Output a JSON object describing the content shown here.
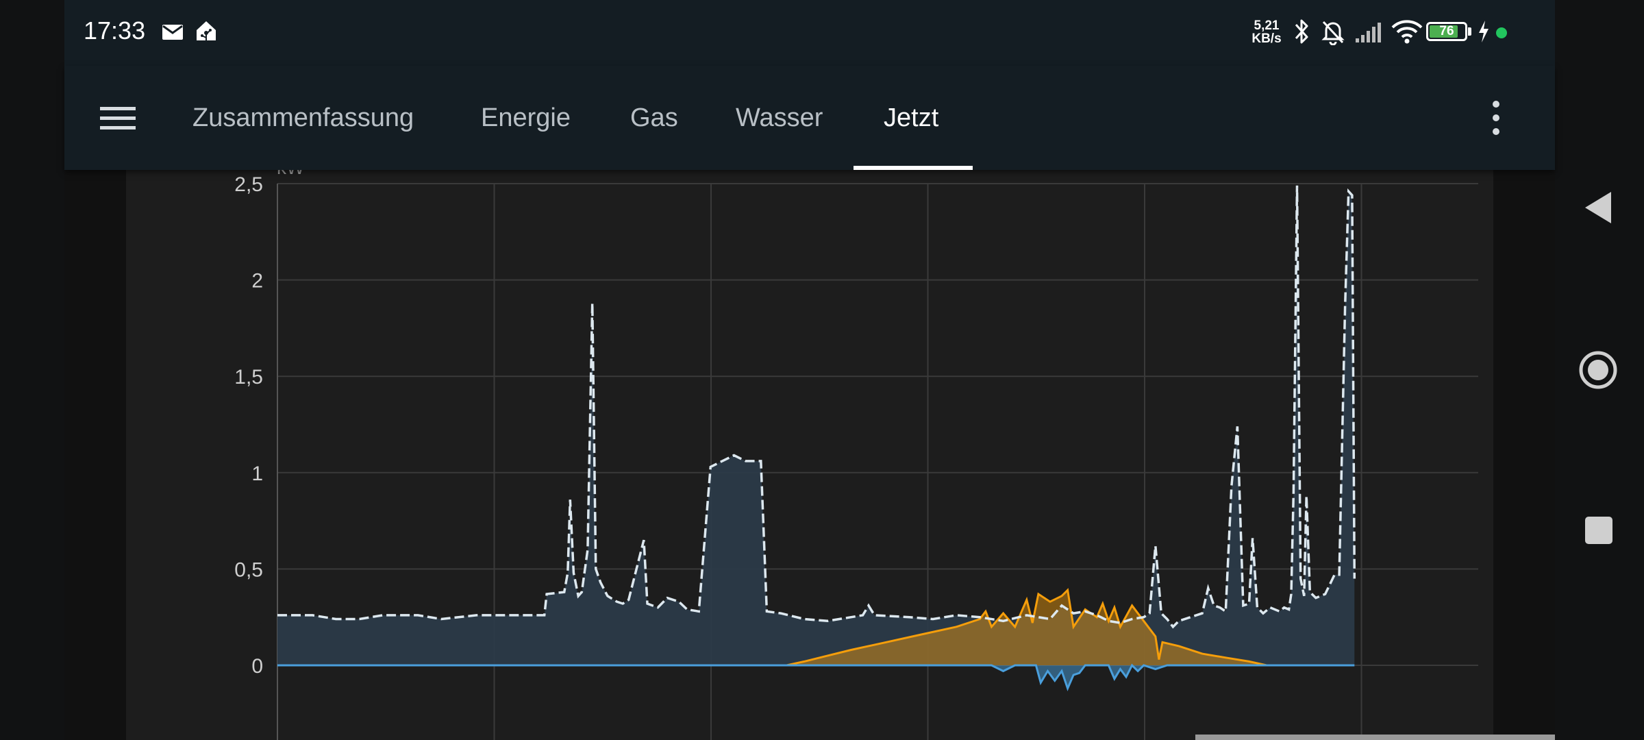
{
  "status_bar": {
    "time": "17:33",
    "net_speed_value": "5,21",
    "net_speed_unit": "KB/s",
    "battery_level": "76",
    "icons": [
      "mail-icon",
      "home-assistant-icon",
      "bluetooth-icon",
      "bell-off-icon",
      "signal-icon",
      "wifi-icon",
      "battery-icon",
      "charging-icon",
      "green-dot-icon"
    ]
  },
  "toolbar": {
    "tabs": [
      {
        "label": "Zusammenfassung",
        "active": false
      },
      {
        "label": "Energie",
        "active": false
      },
      {
        "label": "Gas",
        "active": false
      },
      {
        "label": "Wasser",
        "active": false
      },
      {
        "label": "Jetzt",
        "active": true
      }
    ]
  },
  "colors": {
    "header_bg": "#141d23",
    "consumption_line": "#dde8ef",
    "consumption_fill": "#2b3a48",
    "solar": "#f59e0b",
    "grid_return": "#4a9fdc"
  },
  "chart_data": {
    "type": "area",
    "yunit": "kW",
    "ylim": [
      -0.3,
      2.5
    ],
    "yticks": [
      "2,5",
      "2",
      "1,5",
      "1",
      "0,5",
      "0"
    ],
    "grid": true,
    "xlim": [
      0,
      1
    ],
    "series": [
      {
        "key": "consumption",
        "style": "dashed-line-with-fill",
        "points": [
          [
            0,
            0.26
          ],
          [
            0.03,
            0.26
          ],
          [
            0.04,
            0.25
          ],
          [
            0.05,
            0.24
          ],
          [
            0.07,
            0.24
          ],
          [
            0.09,
            0.26
          ],
          [
            0.12,
            0.26
          ],
          [
            0.14,
            0.24
          ],
          [
            0.17,
            0.26
          ],
          [
            0.2,
            0.26
          ],
          [
            0.228,
            0.26
          ],
          [
            0.23,
            0.37
          ],
          [
            0.245,
            0.38
          ],
          [
            0.248,
            0.48
          ],
          [
            0.25,
            0.86
          ],
          [
            0.253,
            0.48
          ],
          [
            0.257,
            0.36
          ],
          [
            0.26,
            0.38
          ],
          [
            0.265,
            0.6
          ],
          [
            0.269,
            1.88
          ],
          [
            0.272,
            0.5
          ],
          [
            0.276,
            0.43
          ],
          [
            0.282,
            0.36
          ],
          [
            0.29,
            0.33
          ],
          [
            0.295,
            0.32
          ],
          [
            0.3,
            0.34
          ],
          [
            0.313,
            0.65
          ],
          [
            0.316,
            0.32
          ],
          [
            0.325,
            0.3
          ],
          [
            0.333,
            0.35
          ],
          [
            0.343,
            0.33
          ],
          [
            0.35,
            0.29
          ],
          [
            0.36,
            0.28
          ],
          [
            0.37,
            1.03
          ],
          [
            0.38,
            1.06
          ],
          [
            0.39,
            1.09
          ],
          [
            0.4,
            1.06
          ],
          [
            0.413,
            1.06
          ],
          [
            0.418,
            0.28
          ],
          [
            0.43,
            0.27
          ],
          [
            0.45,
            0.24
          ],
          [
            0.47,
            0.23
          ],
          [
            0.5,
            0.26
          ],
          [
            0.505,
            0.31
          ],
          [
            0.51,
            0.26
          ],
          [
            0.54,
            0.25
          ],
          [
            0.56,
            0.24
          ],
          [
            0.58,
            0.26
          ],
          [
            0.6,
            0.25
          ],
          [
            0.62,
            0.23
          ],
          [
            0.64,
            0.26
          ],
          [
            0.66,
            0.24
          ],
          [
            0.67,
            0.31
          ],
          [
            0.68,
            0.27
          ],
          [
            0.69,
            0.28
          ],
          [
            0.7,
            0.26
          ],
          [
            0.71,
            0.23
          ],
          [
            0.72,
            0.22
          ],
          [
            0.73,
            0.24
          ],
          [
            0.74,
            0.25
          ],
          [
            0.745,
            0.27
          ],
          [
            0.75,
            0.62
          ],
          [
            0.755,
            0.27
          ],
          [
            0.76,
            0.24
          ],
          [
            0.765,
            0.2
          ],
          [
            0.77,
            0.23
          ],
          [
            0.78,
            0.25
          ],
          [
            0.79,
            0.27
          ],
          [
            0.795,
            0.4
          ],
          [
            0.8,
            0.31
          ],
          [
            0.805,
            0.3
          ],
          [
            0.81,
            0.28
          ],
          [
            0.815,
            0.93
          ],
          [
            0.82,
            1.24
          ],
          [
            0.825,
            0.31
          ],
          [
            0.83,
            0.32
          ],
          [
            0.833,
            0.66
          ],
          [
            0.837,
            0.3
          ],
          [
            0.842,
            0.27
          ],
          [
            0.848,
            0.3
          ],
          [
            0.856,
            0.28
          ],
          [
            0.86,
            0.3
          ],
          [
            0.864,
            0.29
          ],
          [
            0.866,
            0.37
          ],
          [
            0.868,
            0.9
          ],
          [
            0.871,
            2.49
          ],
          [
            0.874,
            0.45
          ],
          [
            0.877,
            0.36
          ],
          [
            0.879,
            0.88
          ],
          [
            0.882,
            0.38
          ],
          [
            0.887,
            0.35
          ],
          [
            0.895,
            0.37
          ],
          [
            0.903,
            0.47
          ],
          [
            0.907,
            0.47
          ],
          [
            0.912,
            1.86
          ],
          [
            0.915,
            2.46
          ],
          [
            0.918,
            2.44
          ],
          [
            0.92,
            0.45
          ]
        ]
      },
      {
        "key": "solar",
        "style": "line-with-fill",
        "points": [
          [
            0.435,
            0
          ],
          [
            0.45,
            0.02
          ],
          [
            0.47,
            0.05
          ],
          [
            0.49,
            0.08
          ],
          [
            0.52,
            0.12
          ],
          [
            0.55,
            0.16
          ],
          [
            0.58,
            0.2
          ],
          [
            0.6,
            0.24
          ],
          [
            0.605,
            0.28
          ],
          [
            0.61,
            0.2
          ],
          [
            0.62,
            0.27
          ],
          [
            0.63,
            0.2
          ],
          [
            0.64,
            0.34
          ],
          [
            0.645,
            0.22
          ],
          [
            0.65,
            0.37
          ],
          [
            0.66,
            0.33
          ],
          [
            0.67,
            0.36
          ],
          [
            0.675,
            0.39
          ],
          [
            0.68,
            0.2
          ],
          [
            0.69,
            0.29
          ],
          [
            0.7,
            0.25
          ],
          [
            0.705,
            0.32
          ],
          [
            0.71,
            0.23
          ],
          [
            0.715,
            0.3
          ],
          [
            0.72,
            0.2
          ],
          [
            0.73,
            0.31
          ],
          [
            0.74,
            0.23
          ],
          [
            0.75,
            0.15
          ],
          [
            0.753,
            0.03
          ],
          [
            0.756,
            0.12
          ],
          [
            0.77,
            0.1
          ],
          [
            0.79,
            0.06
          ],
          [
            0.81,
            0.04
          ],
          [
            0.83,
            0.02
          ],
          [
            0.845,
            0.0
          ]
        ]
      },
      {
        "key": "grid_return",
        "style": "line-with-fill-below-zero",
        "points": [
          [
            0,
            0
          ],
          [
            0.61,
            0
          ],
          [
            0.62,
            -0.03
          ],
          [
            0.63,
            0
          ],
          [
            0.648,
            0
          ],
          [
            0.652,
            -0.09
          ],
          [
            0.658,
            -0.03
          ],
          [
            0.664,
            -0.08
          ],
          [
            0.67,
            -0.03
          ],
          [
            0.675,
            -0.12
          ],
          [
            0.68,
            -0.05
          ],
          [
            0.685,
            -0.04
          ],
          [
            0.69,
            0
          ],
          [
            0.71,
            0
          ],
          [
            0.715,
            -0.07
          ],
          [
            0.72,
            -0.02
          ],
          [
            0.725,
            -0.06
          ],
          [
            0.73,
            0
          ],
          [
            0.735,
            -0.03
          ],
          [
            0.74,
            0
          ],
          [
            0.75,
            -0.02
          ],
          [
            0.76,
            0
          ],
          [
            0.92,
            0
          ]
        ]
      }
    ]
  }
}
